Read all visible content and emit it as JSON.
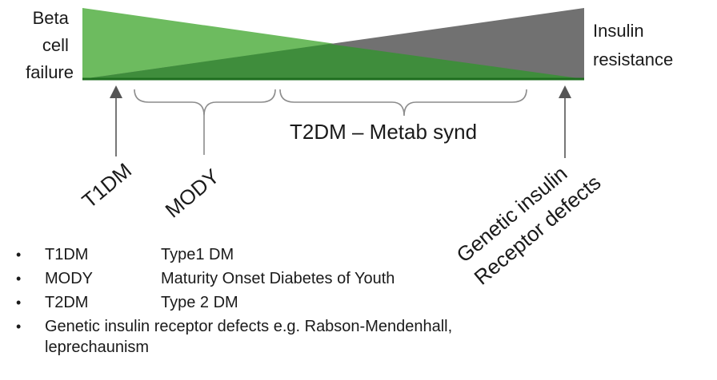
{
  "diagram": {
    "left_axis_label_lines": [
      "Beta",
      "cell",
      "failure"
    ],
    "right_axis_label_lines": [
      "Insulin",
      "resistance"
    ],
    "colors": {
      "beta_cell_failure": "#6dbb5f",
      "insulin_resistance": "#717171",
      "overlap": "#3f8d3c",
      "baseline": "#1f6e1f",
      "brace": "#8c8c8c",
      "arrow": "#555555"
    },
    "labels": {
      "t1dm": "T1DM",
      "mody": "MODY",
      "t2dm": "T2DM – Metab synd",
      "genetic_line1": "Genetic insulin",
      "genetic_line2": "Receptor defects"
    }
  },
  "legend": [
    {
      "term": "T1DM",
      "definition": "Type1 DM"
    },
    {
      "term": "MODY",
      "definition": "Maturity Onset Diabetes of Youth"
    },
    {
      "term": "T2DM",
      "definition": "Type 2 DM"
    },
    {
      "term": "",
      "definition": "Genetic insulin receptor defects e.g. Rabson-Mendenhall,",
      "definition_line2": "leprechaunism"
    }
  ]
}
